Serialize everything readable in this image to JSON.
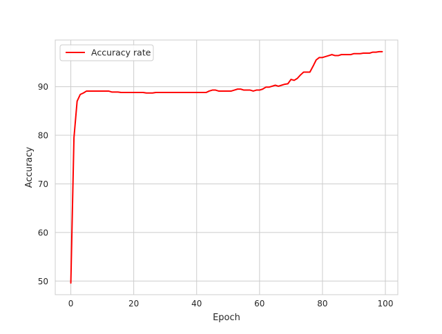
{
  "chart_data": {
    "type": "line",
    "title": "",
    "xlabel": "Epoch",
    "ylabel": "Accuracy",
    "xlim": [
      -4.95,
      103.95
    ],
    "ylim": [
      47.2,
      99.6
    ],
    "xticks": [
      0,
      20,
      40,
      60,
      80,
      100
    ],
    "yticks": [
      50,
      60,
      70,
      80,
      90
    ],
    "grid": true,
    "legend": "top-left",
    "series": [
      {
        "name": "Accuracy rate",
        "color": "#ff0000",
        "x": [
          0,
          1,
          2,
          3,
          4,
          5,
          6,
          7,
          8,
          9,
          10,
          11,
          12,
          13,
          14,
          15,
          16,
          17,
          18,
          19,
          20,
          21,
          22,
          23,
          24,
          25,
          26,
          27,
          28,
          29,
          30,
          31,
          32,
          33,
          34,
          35,
          36,
          37,
          38,
          39,
          40,
          41,
          42,
          43,
          44,
          45,
          46,
          47,
          48,
          49,
          50,
          51,
          52,
          53,
          54,
          55,
          56,
          57,
          58,
          59,
          60,
          61,
          62,
          63,
          64,
          65,
          66,
          67,
          68,
          69,
          70,
          71,
          72,
          73,
          74,
          75,
          76,
          77,
          78,
          79,
          80,
          81,
          82,
          83,
          84,
          85,
          86,
          87,
          88,
          89,
          90,
          91,
          92,
          93,
          94,
          95,
          96,
          97,
          98,
          99
        ],
        "values": [
          49.6,
          79.5,
          87.0,
          88.4,
          88.7,
          89.1,
          89.1,
          89.1,
          89.1,
          89.1,
          89.1,
          89.1,
          89.1,
          88.9,
          88.9,
          88.9,
          88.8,
          88.8,
          88.8,
          88.8,
          88.8,
          88.8,
          88.8,
          88.8,
          88.7,
          88.7,
          88.7,
          88.8,
          88.8,
          88.8,
          88.8,
          88.8,
          88.8,
          88.8,
          88.8,
          88.8,
          88.8,
          88.8,
          88.8,
          88.8,
          88.8,
          88.8,
          88.8,
          88.8,
          89.1,
          89.3,
          89.3,
          89.1,
          89.1,
          89.1,
          89.1,
          89.1,
          89.3,
          89.5,
          89.5,
          89.3,
          89.3,
          89.3,
          89.1,
          89.3,
          89.3,
          89.5,
          89.9,
          89.9,
          90.1,
          90.3,
          90.1,
          90.3,
          90.5,
          90.6,
          91.5,
          91.3,
          91.7,
          92.4,
          93.0,
          93.0,
          93.0,
          94.2,
          95.5,
          96.0,
          96.0,
          96.2,
          96.4,
          96.6,
          96.4,
          96.4,
          96.6,
          96.6,
          96.6,
          96.6,
          96.8,
          96.8,
          96.8,
          96.9,
          96.9,
          96.9,
          97.1,
          97.1,
          97.2,
          97.2
        ]
      }
    ]
  }
}
